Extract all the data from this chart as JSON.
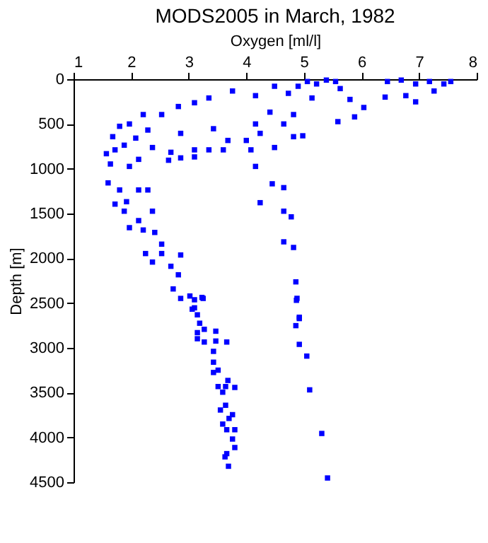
{
  "chart_data": {
    "type": "scatter",
    "title": "MODS2005 in March, 1982",
    "xlabel": "Oxygen [ml/l]",
    "ylabel": "Depth [m]",
    "xlim": [
      1,
      8
    ],
    "xticks": [
      1,
      2,
      3,
      4,
      5,
      6,
      7,
      8
    ],
    "ylim": [
      4500,
      0
    ],
    "yticks": [
      0,
      500,
      1000,
      1500,
      2000,
      2500,
      3000,
      3500,
      4000,
      4500
    ],
    "grid": false,
    "legend": false,
    "marker": "square",
    "series": [
      {
        "color": "#0000ff",
        "x": [
          5.06,
          5.22,
          5.39,
          5.55,
          4.9,
          5.14,
          4.73,
          4.49,
          5.63,
          6.45,
          6.69,
          6.94,
          7.18,
          7.43,
          7.55,
          7.26,
          6.77,
          6.94,
          6.41,
          6.04,
          5.88,
          5.59,
          5.8,
          4.16,
          3.76,
          3.35,
          3.1,
          2.82,
          2.53,
          2.21,
          1.97,
          1.8,
          1.68,
          1.72,
          1.57,
          1.64,
          1.97,
          2.13,
          2.37,
          2.29,
          1.88,
          2.08,
          4.41,
          4.65,
          4.82,
          4.16,
          4.24,
          4.0,
          4.49,
          4.08,
          4.16,
          4.98,
          4.82,
          3.43,
          3.68,
          3.35,
          3.6,
          3.1,
          2.86,
          2.69,
          2.65,
          3.1,
          2.86,
          1.6,
          1.8,
          2.13,
          2.29,
          1.72,
          1.92,
          1.88,
          2.37,
          2.13,
          1.97,
          2.21,
          2.41,
          2.53,
          2.25,
          2.53,
          2.86,
          2.37,
          2.69,
          2.82,
          2.73,
          3.02,
          3.23,
          3.1,
          4.45,
          4.65,
          4.24,
          4.65,
          4.78,
          4.65,
          4.82,
          4.86,
          4.88,
          4.92,
          2.86,
          3.1,
          3.25,
          3.06,
          3.15,
          3.19,
          3.27,
          3.15,
          3.15,
          3.27,
          3.47,
          3.47,
          3.66,
          3.43,
          3.43,
          3.51,
          3.43,
          3.68,
          3.51,
          3.64,
          3.8,
          3.59,
          3.64,
          3.55,
          3.76,
          3.7,
          3.59,
          3.66,
          3.8,
          3.76,
          3.8,
          3.66,
          3.63,
          3.69,
          4.87,
          4.92,
          4.86,
          4.92,
          5.05,
          5.1,
          5.31,
          5.41
        ],
        "values": [
          26,
          53,
          10,
          26,
          79,
          210,
          158,
          79,
          105,
          26,
          10,
          53,
          26,
          53,
          26,
          132,
          184,
          253,
          200,
          316,
          421,
          474,
          226,
          184,
          132,
          210,
          263,
          305,
          395,
          395,
          500,
          526,
          642,
          789,
          832,
          947,
          974,
          895,
          763,
          568,
          737,
          658,
          368,
          500,
          395,
          500,
          605,
          684,
          763,
          789,
          974,
          632,
          642,
          553,
          684,
          789,
          789,
          789,
          605,
          816,
          905,
          868,
          879,
          1158,
          1237,
          1237,
          1237,
          1395,
          1368,
          1474,
          1474,
          1579,
          1658,
          1684,
          1711,
          1842,
          1947,
          1947,
          1963,
          2042,
          2089,
          2184,
          2342,
          2421,
          2437,
          2553,
          1168,
          1211,
          1379,
          1474,
          1537,
          1816,
          1879,
          2263,
          2447,
          2658,
          2448,
          2463,
          2448,
          2568,
          2631,
          2725,
          2793,
          2830,
          2898,
          2935,
          2814,
          2924,
          2935,
          3039,
          3160,
          3249,
          3275,
          3364,
          3432,
          3432,
          3442,
          3495,
          3641,
          3694,
          3746,
          3788,
          3851,
          3914,
          3914,
          4018,
          4113,
          4181,
          4217,
          4322,
          2469,
          2673,
          2752,
          2961,
          3092,
          3469,
          3956,
          4453
        ]
      }
    ]
  }
}
